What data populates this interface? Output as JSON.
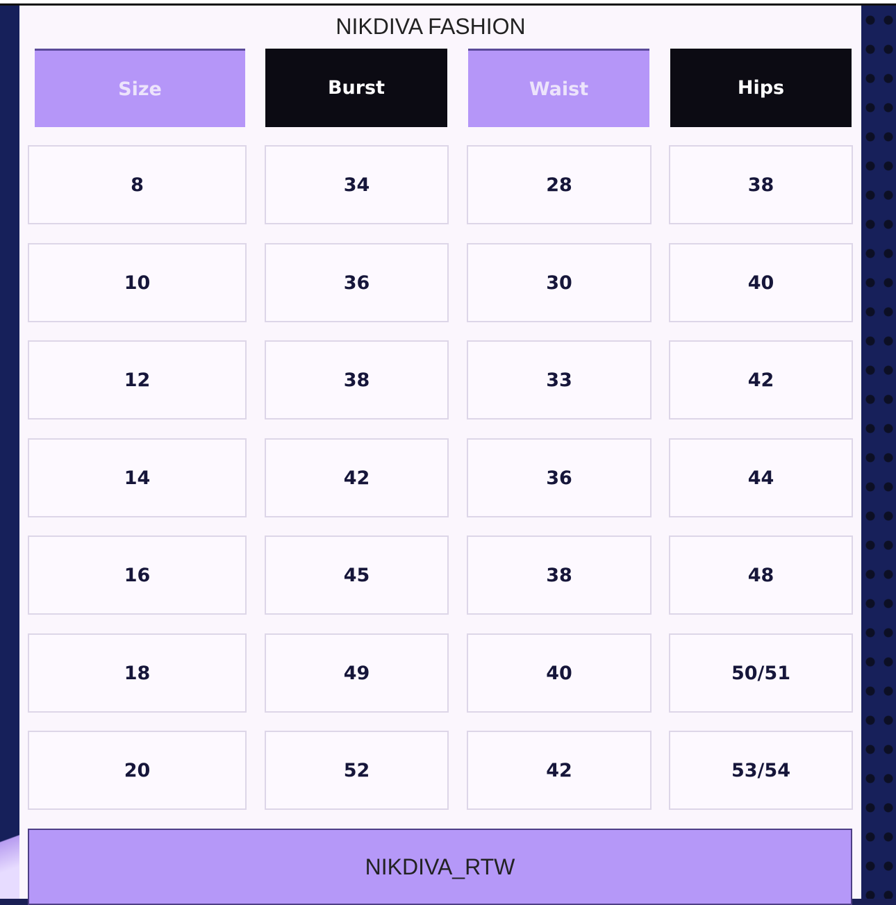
{
  "title": "NIKDIVA FASHION",
  "headers": [
    "Size",
    "Burst",
    "Waist",
    "Hips"
  ],
  "rows": [
    [
      "8",
      "34",
      "28",
      "38"
    ],
    [
      "10",
      "36",
      "30",
      "40"
    ],
    [
      "12",
      "38",
      "33",
      "42"
    ],
    [
      "14",
      "42",
      "36",
      "44"
    ],
    [
      "16",
      "45",
      "38",
      "48"
    ],
    [
      "18",
      "49",
      "40",
      "50/51"
    ],
    [
      "20",
      "52",
      "42",
      "53/54"
    ]
  ],
  "footer": "NIKDIVA_RTW",
  "colors": {
    "lavender": "#b596f8",
    "black": "#0c0b13",
    "navy": "#17205a"
  }
}
